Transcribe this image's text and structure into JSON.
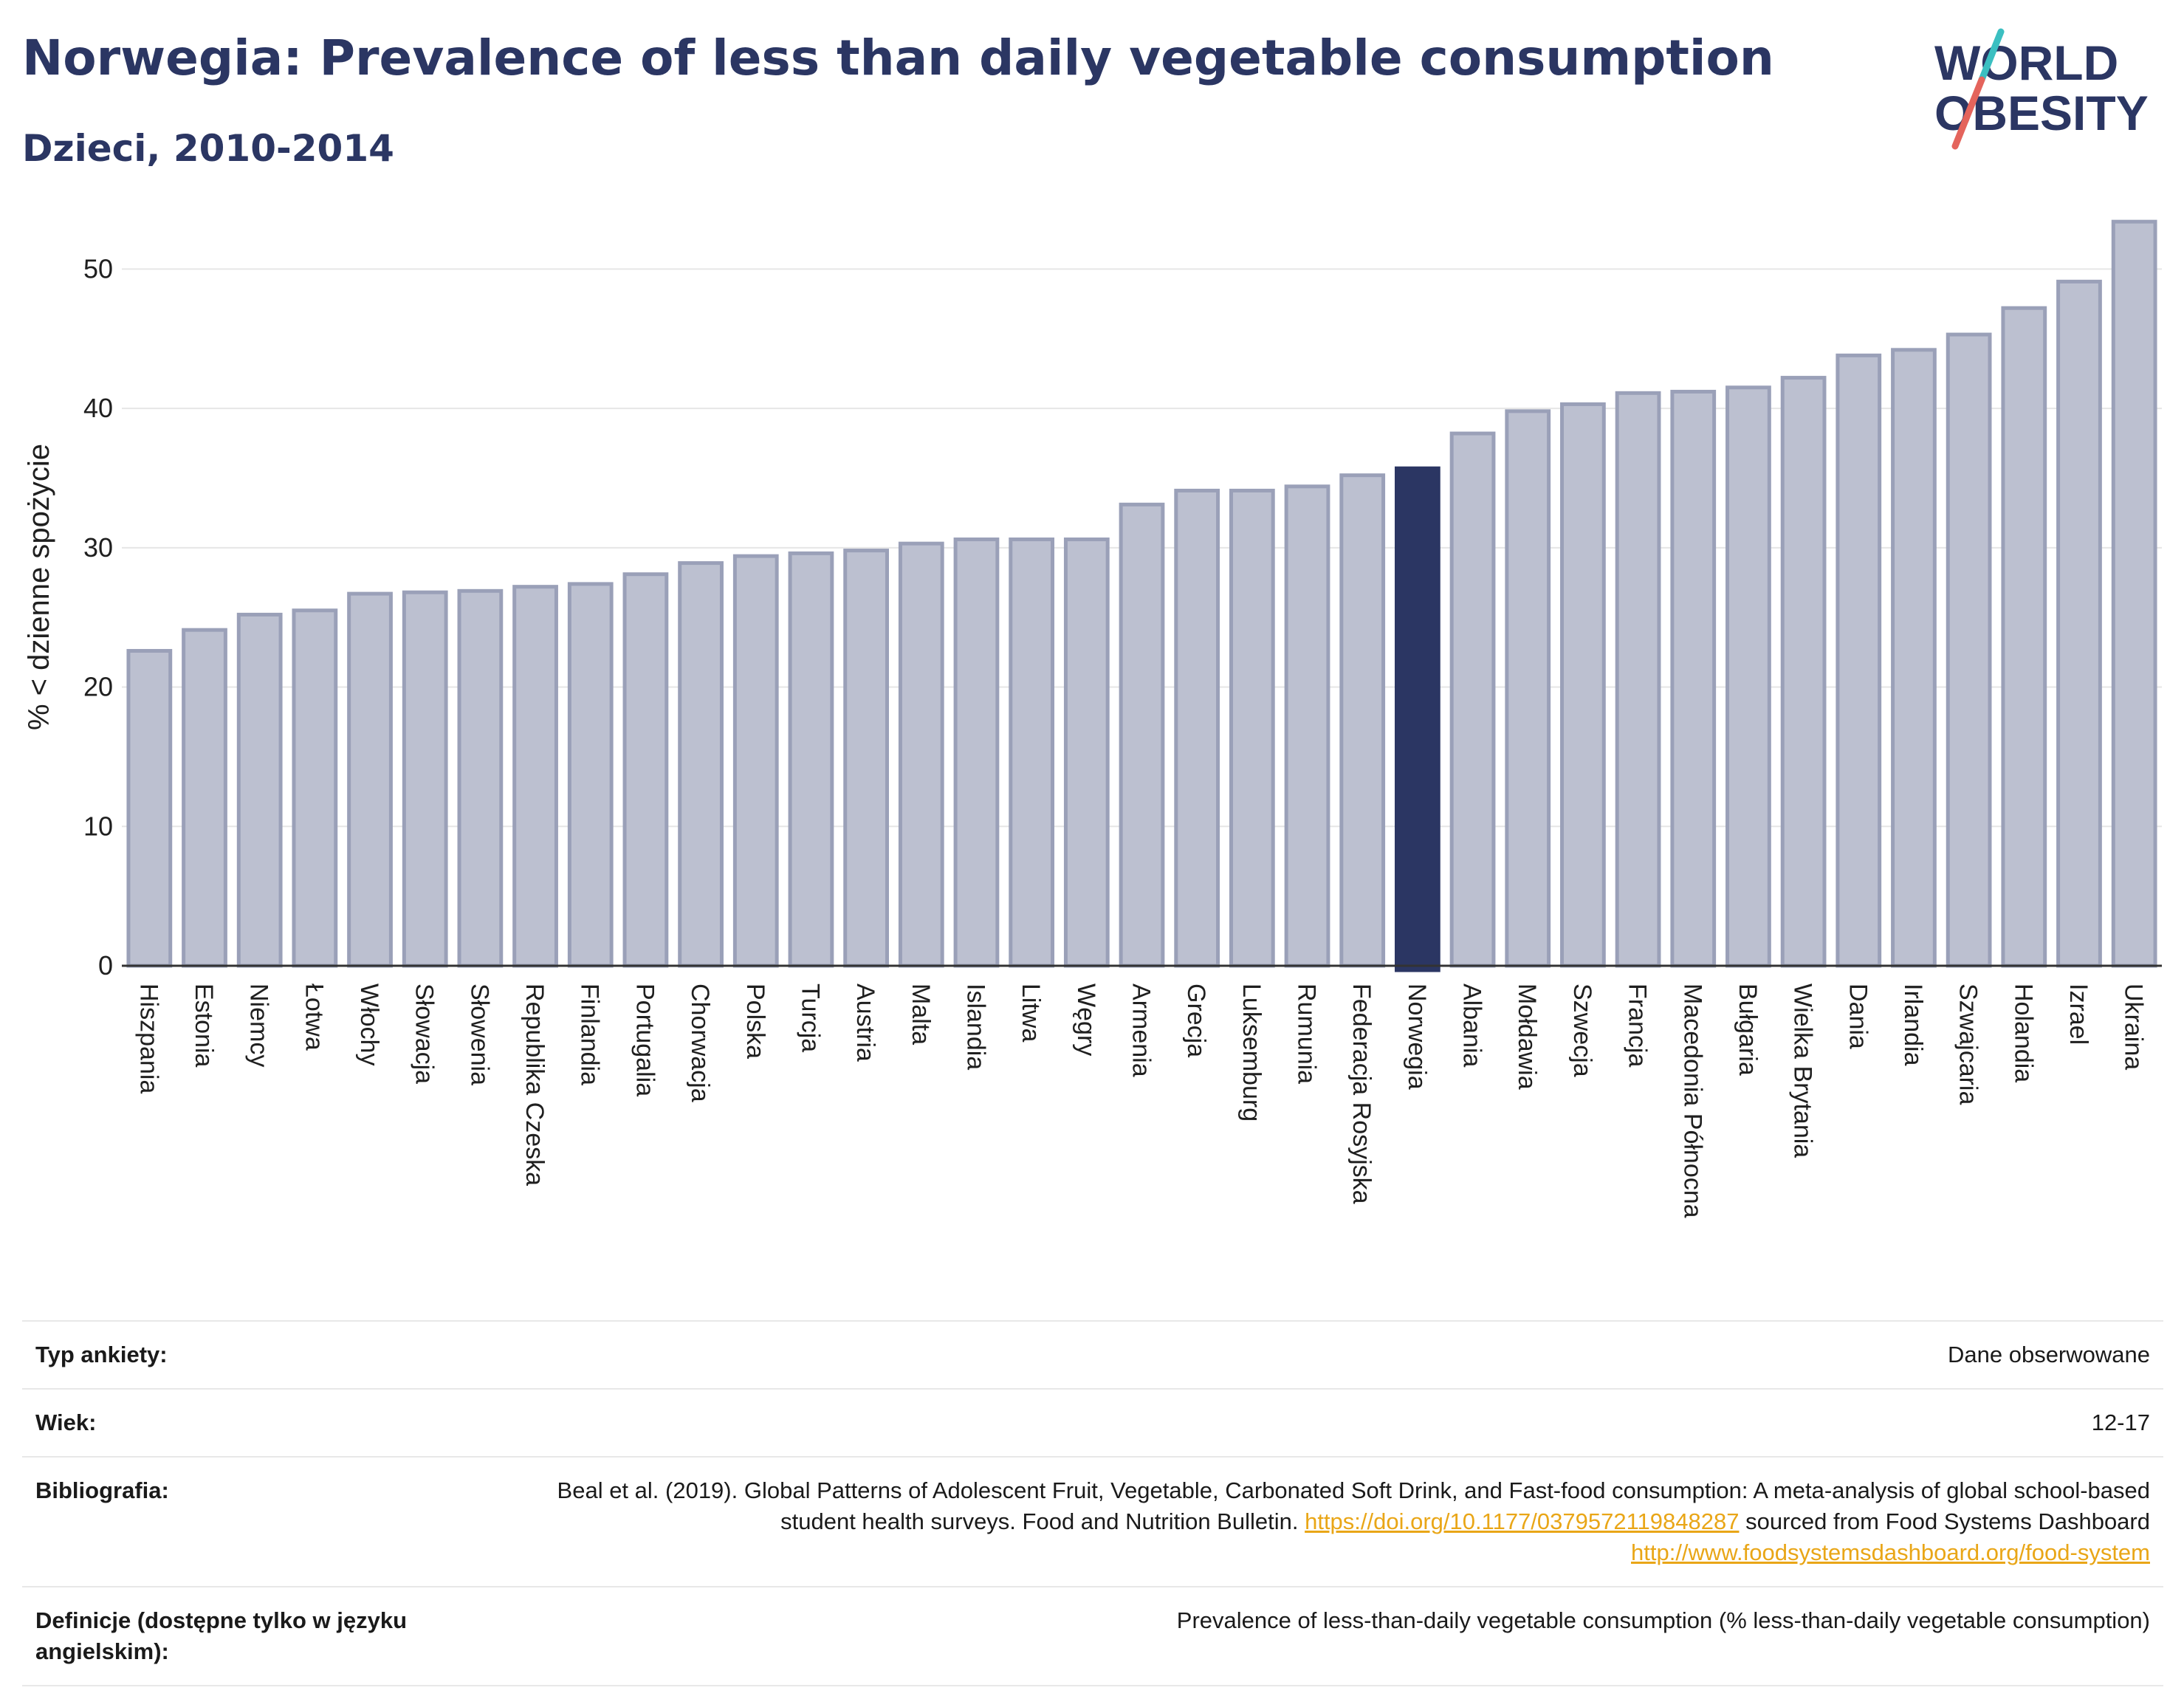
{
  "header": {
    "title": "Norwegia: Prevalence of less than daily vegetable consumption",
    "subtitle": "Dzieci, 2010-2014"
  },
  "logo": {
    "line1": "WORLD",
    "line2": "OBESITY",
    "colors": {
      "text": "#2b3663",
      "slash_teal": "#3bbfc1",
      "slash_red": "#e4645c"
    }
  },
  "colors": {
    "bar": "#bcc0d0",
    "bar_stroke": "#9aa0b8",
    "highlight": "#2b3663",
    "grid": "#e6e6e6",
    "axis": "#333333"
  },
  "chart_data": {
    "type": "bar",
    "title": "Norwegia: Prevalence of less than daily vegetable consumption",
    "ylabel": "% < dzienne spożycie",
    "xlabel": "",
    "ylim": [
      0,
      55
    ],
    "yticks": [
      0,
      10,
      20,
      30,
      40,
      50
    ],
    "grid": true,
    "highlight": "Norwegia",
    "categories": [
      "Hiszpania",
      "Estonia",
      "Niemcy",
      "Łotwa",
      "Włochy",
      "Słowacja",
      "Słowenia",
      "Republika Czeska",
      "Finlandia",
      "Portugalia",
      "Chorwacja",
      "Polska",
      "Turcja",
      "Austria",
      "Malta",
      "Islandia",
      "Litwa",
      "Węgry",
      "Armenia",
      "Grecja",
      "Luksemburg",
      "Rumunia",
      "Federacja Rosyjska",
      "Norwegia",
      "Albania",
      "Mołdawia",
      "Szwecja",
      "Francja",
      "Macedonia Północna",
      "Bułgaria",
      "Wielka Brytania",
      "Dania",
      "Irlandia",
      "Szwajcaria",
      "Holandia",
      "Izrael",
      "Ukraina"
    ],
    "values": [
      22.6,
      24.1,
      25.2,
      25.5,
      26.7,
      26.8,
      26.9,
      27.2,
      27.4,
      28.1,
      28.9,
      29.4,
      29.6,
      29.8,
      30.3,
      30.6,
      30.6,
      30.6,
      33.1,
      34.1,
      34.1,
      34.4,
      35.2,
      35.7,
      38.2,
      39.8,
      40.3,
      41.1,
      41.2,
      41.5,
      42.2,
      43.8,
      44.2,
      45.3,
      47.2,
      49.1,
      53.4
    ]
  },
  "meta": [
    {
      "key": "Typ ankiety:",
      "value": "Dane obserwowane"
    },
    {
      "key": "Wiek:",
      "value": "12-17"
    },
    {
      "key": "Bibliografia:",
      "value_pre": "Beal et al. (2019). Global Patterns of Adolescent Fruit, Vegetable, Carbonated Soft Drink, and Fast-food consumption: A meta-analysis of global school-based student health surveys. Food and Nutrition Bulletin. ",
      "link1": "https://doi.org/10.1177/0379572119848287",
      "value_mid": " sourced from Food Systems Dashboard ",
      "link2": "http://www.foodsystemsdashboard.org/food-system"
    },
    {
      "key": "Definicje (dostępne tylko w języku angielskim):",
      "value": "Prevalence of less-than-daily vegetable consumption (% less-than-daily vegetable consumption)"
    }
  ]
}
